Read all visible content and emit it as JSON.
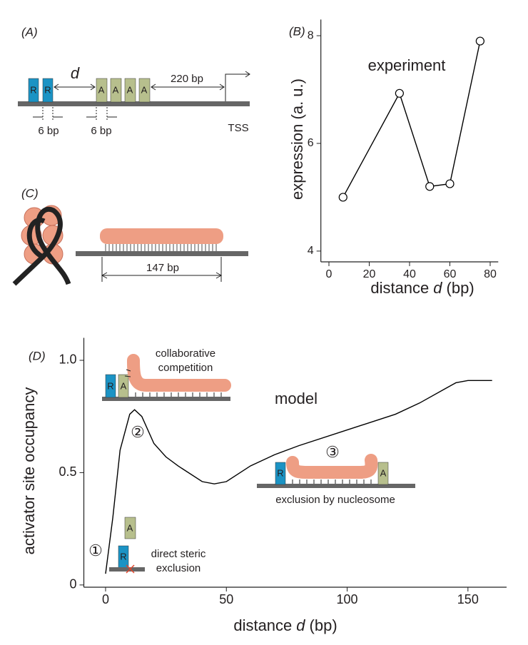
{
  "chart_data": [
    {
      "type": "line",
      "panel_label": "(B)",
      "annotation": "experiment",
      "x_label": [
        "distance",
        "d",
        "(bp)"
      ],
      "y_label": "expression (a. u.)",
      "x": [
        7,
        35,
        50,
        60,
        75
      ],
      "values": [
        5.0,
        6.93,
        5.2,
        5.25,
        7.9
      ],
      "color": "#000000",
      "markers": true,
      "xlim": [
        -4,
        84
      ],
      "ylim": [
        3.8,
        8.3
      ],
      "xticks": [
        0,
        20,
        40,
        60,
        80
      ],
      "yticks": [
        4,
        6,
        8
      ]
    },
    {
      "type": "line",
      "panel_label": "(D)",
      "annotation": "model",
      "x_label": [
        "distance",
        "d",
        "(bp)"
      ],
      "y_label": "activator site occupancy",
      "x": [
        0,
        3,
        6,
        10,
        12,
        15,
        20,
        25,
        30,
        40,
        45,
        50,
        60,
        70,
        80,
        100,
        120,
        130,
        140,
        145,
        150,
        160
      ],
      "values": [
        0.05,
        0.3,
        0.6,
        0.76,
        0.78,
        0.75,
        0.63,
        0.57,
        0.53,
        0.46,
        0.45,
        0.46,
        0.53,
        0.58,
        0.62,
        0.69,
        0.76,
        0.81,
        0.87,
        0.9,
        0.91,
        0.91
      ],
      "color": "#000000",
      "markers": false,
      "xlim": [
        -9,
        166
      ],
      "ylim": [
        -0.01,
        1.1
      ],
      "xticks": [
        0,
        50,
        100,
        150
      ],
      "yticks": [
        0,
        0.5,
        {
          "value": 1,
          "label": "1.0"
        }
      ]
    }
  ],
  "diagram_a": {
    "label": "(A)",
    "repressor": [
      "R",
      "R"
    ],
    "activator": [
      "A",
      "A",
      "A",
      "A"
    ],
    "spacing": "d",
    "distance_to_tss": "220 bp",
    "repressor_width": "6 bp",
    "activator_width": "6 bp",
    "tss": "TSS"
  },
  "diagram_c": {
    "label": "(C)",
    "length": "147 bp"
  },
  "insets": {
    "collaborative": {
      "text": [
        "collaborative",
        "competition"
      ],
      "boxes": [
        "R",
        "A"
      ],
      "marker": "②"
    },
    "nucleosome": {
      "text": "exclusion by nucleosome",
      "boxes": [
        "R",
        "A"
      ],
      "marker": "③"
    },
    "steric": {
      "text": [
        "direct steric",
        "exclusion"
      ],
      "boxes": [
        "A",
        "R"
      ],
      "marker": "①"
    }
  }
}
